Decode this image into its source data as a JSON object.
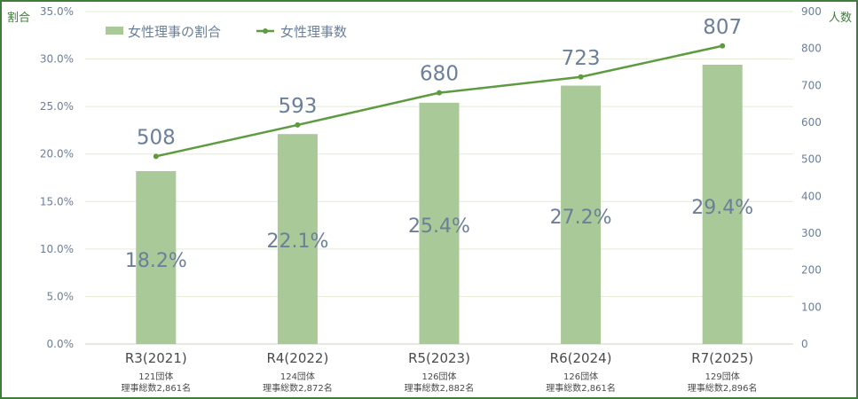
{
  "chart_data": {
    "type": "bar",
    "categories": [
      "R3(2021)",
      "R4(2022)",
      "R5(2023)",
      "R6(2024)",
      "R7(2025)"
    ],
    "category_notes": [
      [
        "121団体",
        "理事総数2,861名"
      ],
      [
        "124団体",
        "理事総数2,872名"
      ],
      [
        "126団体",
        "理事総数2,882名"
      ],
      [
        "126団体",
        "理事総数2,861名"
      ],
      [
        "129団体",
        "理事総数2,896名"
      ]
    ],
    "series": [
      {
        "name": "女性理事の割合",
        "type": "bar",
        "axis": "left",
        "values": [
          18.2,
          22.1,
          25.4,
          27.2,
          29.4
        ],
        "labels": [
          "18.2%",
          "22.1%",
          "25.4%",
          "27.2%",
          "29.4%"
        ],
        "color": "#a9c998"
      },
      {
        "name": "女性理事数",
        "type": "line",
        "axis": "right",
        "values": [
          508,
          593,
          680,
          723,
          807
        ],
        "labels": [
          "508",
          "593",
          "680",
          "723",
          "807"
        ],
        "color": "#5e9a3f"
      }
    ],
    "ylabel_left": "割合",
    "ylabel_right": "人数",
    "ylim_left": [
      0,
      35
    ],
    "ylim_right": [
      0,
      900
    ],
    "yticks_left": [
      "0.0%",
      "5.0%",
      "10.0%",
      "15.0%",
      "20.0%",
      "25.0%",
      "30.0%",
      "35.0%"
    ],
    "yticks_right": [
      "0",
      "100",
      "200",
      "300",
      "400",
      "500",
      "600",
      "700",
      "800",
      "900"
    ],
    "legend_position": "top-left",
    "grid": true,
    "border_color": "#3f7d3a",
    "text_color": "#6b7f99",
    "grid_color": "#e3ecd5"
  }
}
